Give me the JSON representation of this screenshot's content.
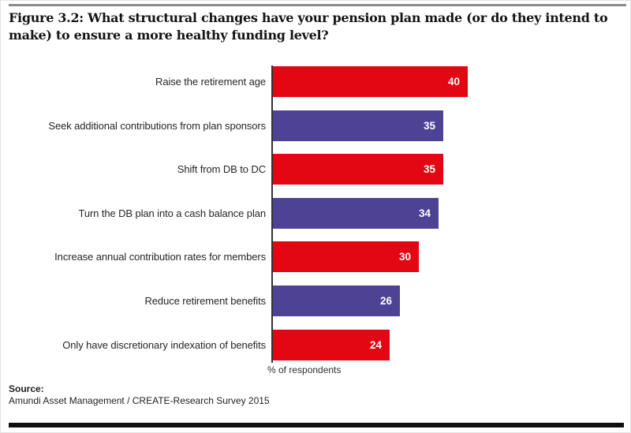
{
  "chart_data": {
    "type": "bar",
    "orientation": "horizontal",
    "title": "Figure 3.2: What structural changes have your pension plan made (or do they intend to make) to ensure a more healthy funding level?",
    "xlabel": "% of respondents",
    "legend": "none",
    "grid": "off",
    "value_label_position": "inside-end",
    "value_label_color": "#ffffff",
    "categories": [
      "Raise the retirement age",
      "Seek additional contributions from plan sponsors",
      "Shift from DB to DC",
      "Turn the DB plan into a cash balance plan",
      "Increase annual contribution rates for members",
      "Reduce retirement benefits",
      "Only have discretionary indexation of benefits"
    ],
    "values": [
      40,
      35,
      35,
      34,
      30,
      26,
      24
    ],
    "items": [
      {
        "label": "Raise the retirement age",
        "value": 40,
        "color": "#e30613"
      },
      {
        "label": "Seek additional contributions from plan sponsors",
        "value": 35,
        "color": "#4e4294"
      },
      {
        "label": "Shift from DB to DC",
        "value": 35,
        "color": "#e30613"
      },
      {
        "label": "Turn the DB plan into a cash balance plan",
        "value": 34,
        "color": "#4e4294"
      },
      {
        "label": "Increase annual contribution rates for members",
        "value": 30,
        "color": "#e30613"
      },
      {
        "label": "Reduce retirement benefits",
        "value": 26,
        "color": "#4e4294"
      },
      {
        "label": "Only have discretionary indexation of benefits",
        "value": 24,
        "color": "#e30613"
      }
    ]
  },
  "colors": {
    "bar_red": "#e30613",
    "bar_purple": "#4e4294",
    "axis": "#333333",
    "top_rule": "#8c8c8c",
    "bottom_rule": "#0f0f0f"
  },
  "footer": {
    "source_label": "Source:",
    "source_text": "Amundi Asset Management / CREATE-Research Survey 2015"
  }
}
